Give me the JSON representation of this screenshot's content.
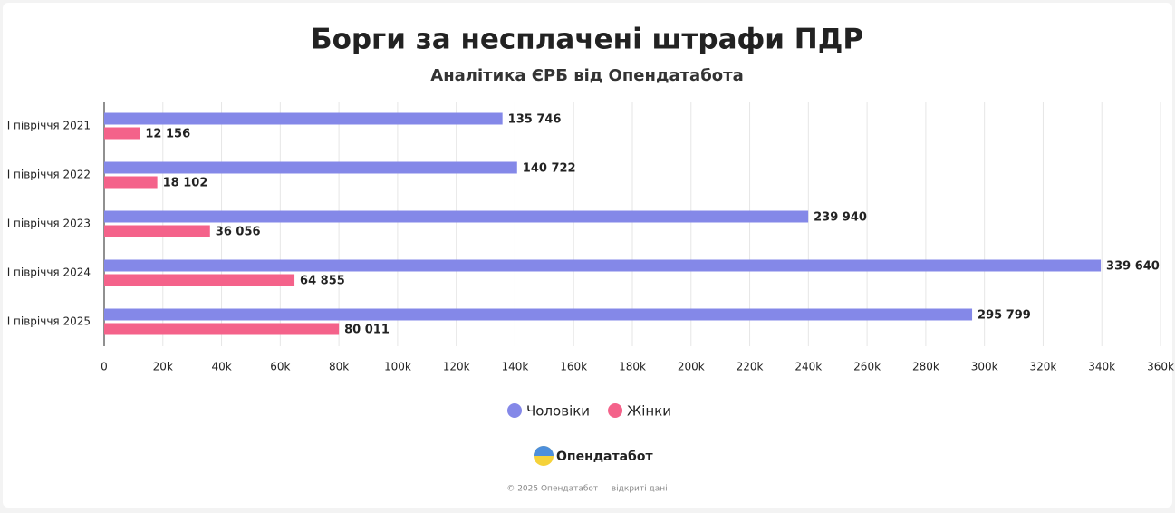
{
  "chart_data": {
    "type": "bar",
    "orientation": "horizontal",
    "title": "Борги за несплачені штрафи ПДР",
    "subtitle": "Аналітика ЄРБ від Опендатабота",
    "categories": [
      "І півріччя 2021",
      "І півріччя 2022",
      "І півріччя 2023",
      "І півріччя 2024",
      "І півріччя 2025"
    ],
    "series": [
      {
        "name": "Чоловіки",
        "color": "#8488e8",
        "values": [
          135746,
          140722,
          239940,
          339640,
          295799
        ],
        "value_labels": [
          "135 746",
          "140 722",
          "239 940",
          "339 640",
          "295 799"
        ]
      },
      {
        "name": "Жінки",
        "color": "#f4628a",
        "values": [
          12156,
          18102,
          36056,
          64855,
          80011
        ],
        "value_labels": [
          "12 156",
          "18 102",
          "36 056",
          "64 855",
          "80 011"
        ]
      }
    ],
    "xlim": [
      0,
      360000
    ],
    "xticks": [
      0,
      {
        "value": 20000,
        "label": "20k"
      },
      {
        "value": 40000,
        "label": "40k"
      },
      {
        "value": 60000,
        "label": "60k"
      },
      {
        "value": 80000,
        "label": "80k"
      },
      {
        "value": 100000,
        "label": "100k"
      },
      {
        "value": 120000,
        "label": "120k"
      },
      {
        "value": 140000,
        "label": "140k"
      },
      {
        "value": 160000,
        "label": "160k"
      },
      {
        "value": 180000,
        "label": "180k"
      },
      {
        "value": 200000,
        "label": "200k"
      },
      {
        "value": 220000,
        "label": "220k"
      },
      {
        "value": 240000,
        "label": "240k"
      },
      {
        "value": 260000,
        "label": "260k"
      },
      {
        "value": 280000,
        "label": "280k"
      },
      {
        "value": 300000,
        "label": "300k"
      },
      {
        "value": 320000,
        "label": "320k"
      },
      {
        "value": 340000,
        "label": "340k"
      },
      {
        "value": 360000,
        "label": "360k"
      }
    ],
    "grid": true,
    "legend": "bottom"
  },
  "brand": "Опендатабот",
  "footer": "© 2025 Опендатабот — відкриті дані"
}
